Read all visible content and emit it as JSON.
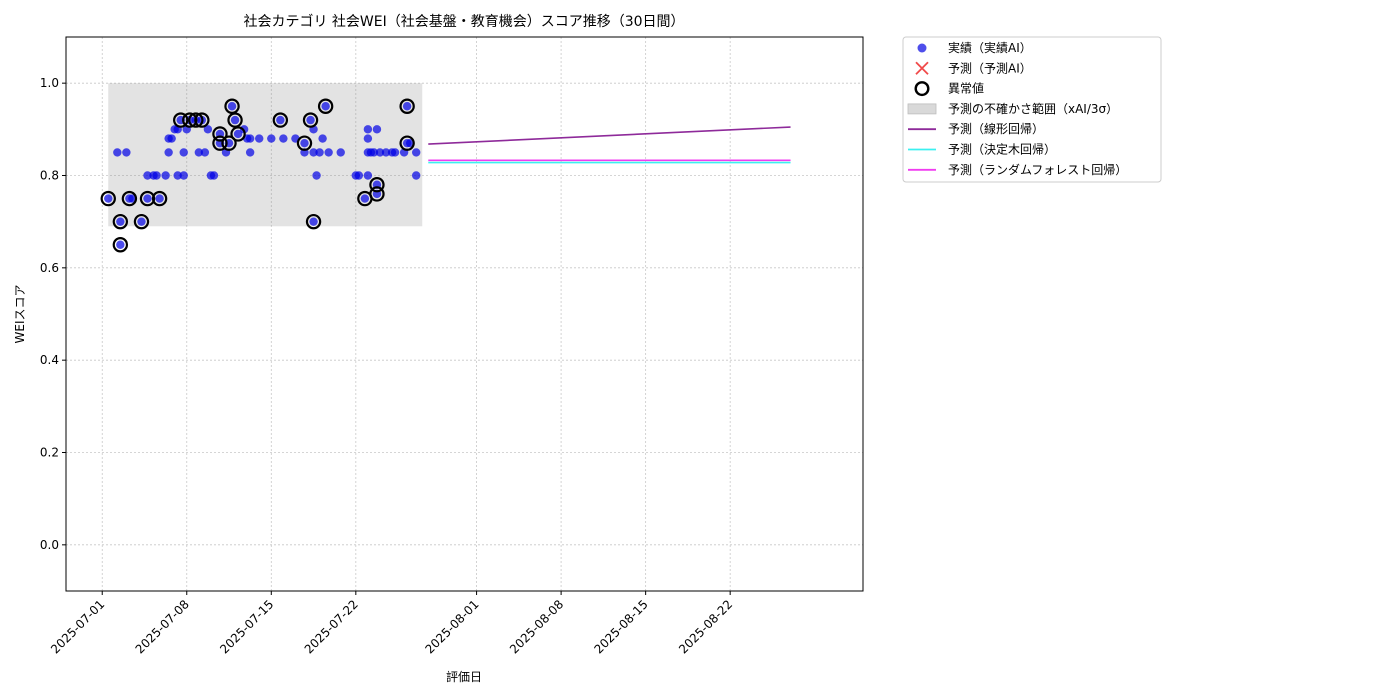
{
  "chart_data": {
    "type": "scatter",
    "title": "社会カテゴリ 社会WEI（社会基盤・教育機会）スコア推移（30日間）",
    "xlabel": "評価日",
    "ylabel": "WEIスコア",
    "ylim": [
      -0.1,
      1.1
    ],
    "yticks": [
      0.0,
      0.2,
      0.4,
      0.6,
      0.8,
      1.0
    ],
    "ytick_labels": [
      "0.0",
      "0.2",
      "0.4",
      "0.6",
      "0.8",
      "1.0"
    ],
    "xlim": [
      "2025-06-28",
      "2025-09-02"
    ],
    "xticks": [
      "2025-07-01",
      "2025-07-08",
      "2025-07-15",
      "2025-07-22",
      "2025-08-01",
      "2025-08-08",
      "2025-08-15",
      "2025-08-22"
    ],
    "grid": true,
    "legend_position": "outside-top-right",
    "legend": [
      {
        "label": "実績（実績AI）",
        "kind": "dot",
        "color": "#2f2fe8"
      },
      {
        "label": "予測（予測AI）",
        "kind": "cross",
        "color": "#f04a4a"
      },
      {
        "label": "異常値",
        "kind": "ring",
        "color": "#000000"
      },
      {
        "label": "予測の不確かさ範囲（xAI/3σ）",
        "kind": "patch",
        "color": "#d9d9d9"
      },
      {
        "label": "予測（線形回帰）",
        "kind": "line",
        "color": "#8e2a9a"
      },
      {
        "label": "予測（決定木回帰）",
        "kind": "line",
        "color": "#3cf0f0"
      },
      {
        "label": "予測（ランダムフォレスト回帰）",
        "kind": "line",
        "color": "#f03cf0"
      }
    ],
    "uncertainty_band": {
      "x_start": "2025-07-01T12:00",
      "x_end": "2025-07-27T12:00",
      "y_low": 0.69,
      "y_high": 1.0
    },
    "actual_points": [
      {
        "x": "2025-07-01T12:00",
        "y": 0.75
      },
      {
        "x": "2025-07-02T06:00",
        "y": 0.85
      },
      {
        "x": "2025-07-02T12:00",
        "y": 0.7
      },
      {
        "x": "2025-07-02T12:00",
        "y": 0.65
      },
      {
        "x": "2025-07-03T00:00",
        "y": 0.85
      },
      {
        "x": "2025-07-03T06:00",
        "y": 0.75
      },
      {
        "x": "2025-07-03T12:00",
        "y": 0.75
      },
      {
        "x": "2025-07-04T06:00",
        "y": 0.7
      },
      {
        "x": "2025-07-04T18:00",
        "y": 0.8
      },
      {
        "x": "2025-07-04T18:00",
        "y": 0.75
      },
      {
        "x": "2025-07-05T06:00",
        "y": 0.8
      },
      {
        "x": "2025-07-05T12:00",
        "y": 0.8
      },
      {
        "x": "2025-07-05T18:00",
        "y": 0.75
      },
      {
        "x": "2025-07-06T06:00",
        "y": 0.8
      },
      {
        "x": "2025-07-06T12:00",
        "y": 0.85
      },
      {
        "x": "2025-07-06T12:00",
        "y": 0.88
      },
      {
        "x": "2025-07-06T18:00",
        "y": 0.88
      },
      {
        "x": "2025-07-07T00:00",
        "y": 0.9
      },
      {
        "x": "2025-07-07T06:00",
        "y": 0.8
      },
      {
        "x": "2025-07-07T06:00",
        "y": 0.9
      },
      {
        "x": "2025-07-07T12:00",
        "y": 0.92
      },
      {
        "x": "2025-07-07T18:00",
        "y": 0.85
      },
      {
        "x": "2025-07-07T18:00",
        "y": 0.8
      },
      {
        "x": "2025-07-08T00:00",
        "y": 0.9
      },
      {
        "x": "2025-07-08T06:00",
        "y": 0.92
      },
      {
        "x": "2025-07-08T18:00",
        "y": 0.92
      },
      {
        "x": "2025-07-09T00:00",
        "y": 0.85
      },
      {
        "x": "2025-07-09T06:00",
        "y": 0.92
      },
      {
        "x": "2025-07-09T12:00",
        "y": 0.85
      },
      {
        "x": "2025-07-09T18:00",
        "y": 0.9
      },
      {
        "x": "2025-07-10T00:00",
        "y": 0.8
      },
      {
        "x": "2025-07-10T06:00",
        "y": 0.8
      },
      {
        "x": "2025-07-10T18:00",
        "y": 0.87
      },
      {
        "x": "2025-07-10T18:00",
        "y": 0.89
      },
      {
        "x": "2025-07-11T06:00",
        "y": 0.85
      },
      {
        "x": "2025-07-11T12:00",
        "y": 0.87
      },
      {
        "x": "2025-07-11T18:00",
        "y": 0.95
      },
      {
        "x": "2025-07-12T00:00",
        "y": 0.92
      },
      {
        "x": "2025-07-12T06:00",
        "y": 0.89
      },
      {
        "x": "2025-07-12T18:00",
        "y": 0.9
      },
      {
        "x": "2025-07-13T00:00",
        "y": 0.88
      },
      {
        "x": "2025-07-13T06:00",
        "y": 0.85
      },
      {
        "x": "2025-07-13T06:00",
        "y": 0.88
      },
      {
        "x": "2025-07-14T00:00",
        "y": 0.88
      },
      {
        "x": "2025-07-15T00:00",
        "y": 0.88
      },
      {
        "x": "2025-07-15T18:00",
        "y": 0.92
      },
      {
        "x": "2025-07-16T00:00",
        "y": 0.88
      },
      {
        "x": "2025-07-17T00:00",
        "y": 0.88
      },
      {
        "x": "2025-07-17T18:00",
        "y": 0.87
      },
      {
        "x": "2025-07-17T18:00",
        "y": 0.85
      },
      {
        "x": "2025-07-18T06:00",
        "y": 0.92
      },
      {
        "x": "2025-07-18T12:00",
        "y": 0.7
      },
      {
        "x": "2025-07-18T12:00",
        "y": 0.9
      },
      {
        "x": "2025-07-18T12:00",
        "y": 0.85
      },
      {
        "x": "2025-07-18T18:00",
        "y": 0.8
      },
      {
        "x": "2025-07-19T00:00",
        "y": 0.85
      },
      {
        "x": "2025-07-19T06:00",
        "y": 0.88
      },
      {
        "x": "2025-07-19T12:00",
        "y": 0.95
      },
      {
        "x": "2025-07-19T18:00",
        "y": 0.85
      },
      {
        "x": "2025-07-20T18:00",
        "y": 0.85
      },
      {
        "x": "2025-07-22T00:00",
        "y": 0.8
      },
      {
        "x": "2025-07-22T06:00",
        "y": 0.8
      },
      {
        "x": "2025-07-22T18:00",
        "y": 0.75
      },
      {
        "x": "2025-07-23T00:00",
        "y": 0.85
      },
      {
        "x": "2025-07-23T00:00",
        "y": 0.88
      },
      {
        "x": "2025-07-23T00:00",
        "y": 0.9
      },
      {
        "x": "2025-07-23T00:00",
        "y": 0.8
      },
      {
        "x": "2025-07-23T06:00",
        "y": 0.85
      },
      {
        "x": "2025-07-23T12:00",
        "y": 0.85
      },
      {
        "x": "2025-07-23T18:00",
        "y": 0.9
      },
      {
        "x": "2025-07-23T18:00",
        "y": 0.78
      },
      {
        "x": "2025-07-23T18:00",
        "y": 0.76
      },
      {
        "x": "2025-07-24T00:00",
        "y": 0.85
      },
      {
        "x": "2025-07-24T12:00",
        "y": 0.85
      },
      {
        "x": "2025-07-25T00:00",
        "y": 0.85
      },
      {
        "x": "2025-07-25T06:00",
        "y": 0.85
      },
      {
        "x": "2025-07-26T00:00",
        "y": 0.85
      },
      {
        "x": "2025-07-26T06:00",
        "y": 0.95
      },
      {
        "x": "2025-07-26T06:00",
        "y": 0.87
      },
      {
        "x": "2025-07-26T12:00",
        "y": 0.87
      },
      {
        "x": "2025-07-27T00:00",
        "y": 0.85
      },
      {
        "x": "2025-07-27T00:00",
        "y": 0.8
      }
    ],
    "anomaly_points": [
      {
        "x": "2025-07-01T12:00",
        "y": 0.75
      },
      {
        "x": "2025-07-02T12:00",
        "y": 0.7
      },
      {
        "x": "2025-07-02T12:00",
        "y": 0.65
      },
      {
        "x": "2025-07-03T06:00",
        "y": 0.75
      },
      {
        "x": "2025-07-04T06:00",
        "y": 0.7
      },
      {
        "x": "2025-07-04T18:00",
        "y": 0.75
      },
      {
        "x": "2025-07-05T18:00",
        "y": 0.75
      },
      {
        "x": "2025-07-07T12:00",
        "y": 0.92
      },
      {
        "x": "2025-07-08T06:00",
        "y": 0.92
      },
      {
        "x": "2025-07-08T18:00",
        "y": 0.92
      },
      {
        "x": "2025-07-09T06:00",
        "y": 0.92
      },
      {
        "x": "2025-07-10T18:00",
        "y": 0.87
      },
      {
        "x": "2025-07-10T18:00",
        "y": 0.89
      },
      {
        "x": "2025-07-11T12:00",
        "y": 0.87
      },
      {
        "x": "2025-07-11T18:00",
        "y": 0.95
      },
      {
        "x": "2025-07-12T00:00",
        "y": 0.92
      },
      {
        "x": "2025-07-12T06:00",
        "y": 0.89
      },
      {
        "x": "2025-07-15T18:00",
        "y": 0.92
      },
      {
        "x": "2025-07-17T18:00",
        "y": 0.87
      },
      {
        "x": "2025-07-18T06:00",
        "y": 0.92
      },
      {
        "x": "2025-07-18T12:00",
        "y": 0.7
      },
      {
        "x": "2025-07-19T12:00",
        "y": 0.95
      },
      {
        "x": "2025-07-22T18:00",
        "y": 0.75
      },
      {
        "x": "2025-07-23T18:00",
        "y": 0.78
      },
      {
        "x": "2025-07-23T18:00",
        "y": 0.76
      },
      {
        "x": "2025-07-26T06:00",
        "y": 0.95
      },
      {
        "x": "2025-07-26T06:00",
        "y": 0.87
      }
    ],
    "series": [
      {
        "name": "予測（線形回帰）",
        "color": "#8e2a9a",
        "x": [
          "2025-07-28T00:00",
          "2025-08-27T00:00"
        ],
        "values": [
          0.868,
          0.905
        ]
      },
      {
        "name": "予測（決定木回帰）",
        "color": "#3cf0f0",
        "x": [
          "2025-07-28T00:00",
          "2025-08-27T00:00"
        ],
        "values": [
          0.828,
          0.828
        ]
      },
      {
        "name": "予測（ランダムフォレスト回帰）",
        "color": "#f03cf0",
        "x": [
          "2025-07-28T00:00",
          "2025-08-27T00:00"
        ],
        "values": [
          0.833,
          0.833
        ]
      }
    ]
  }
}
